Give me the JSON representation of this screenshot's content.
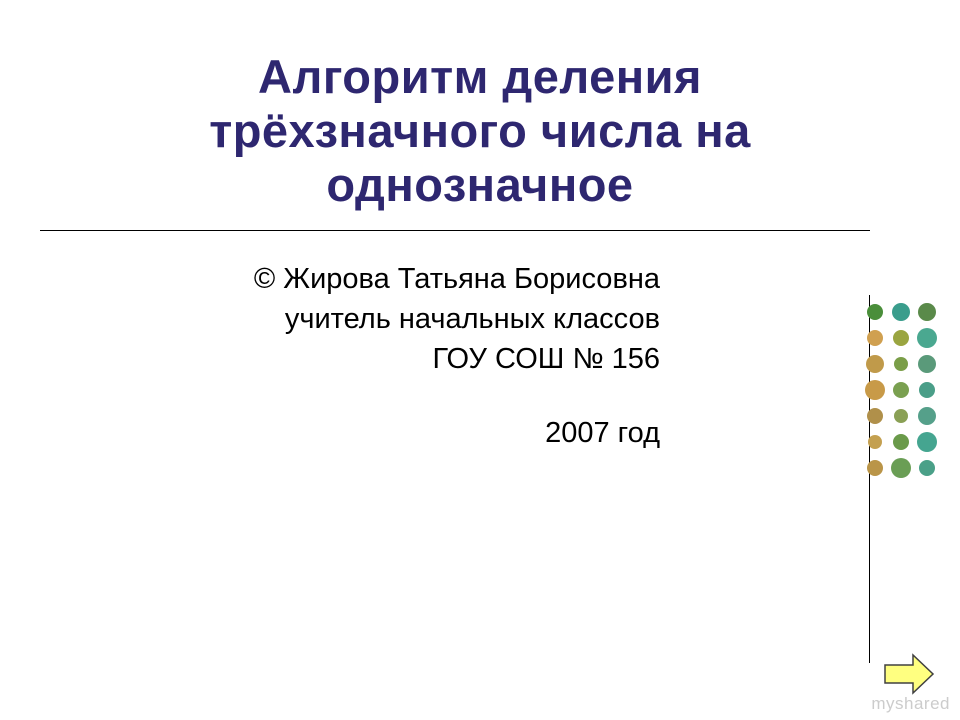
{
  "title": {
    "line1": "Алгоритм деления",
    "line2": "трёхзначного  числа на",
    "line3": "однозначное",
    "color": "#2e2770",
    "fontsize": 47
  },
  "subtitle": {
    "line1": "© Жирова Татьяна Борисовна",
    "line2": "учитель начальных классов",
    "line3": "ГОУ СОШ № 156",
    "year": "2007 год",
    "color": "#000000",
    "fontsize": 29
  },
  "divider": {
    "color": "#000000"
  },
  "decoration": {
    "type": "dot-grid",
    "rows": 7,
    "cols": 3,
    "spacing": 26,
    "dots": [
      {
        "r": 0,
        "c": 0,
        "radius": 8,
        "color": "#4a8e3a"
      },
      {
        "r": 0,
        "c": 1,
        "radius": 9,
        "color": "#3a9d8c"
      },
      {
        "r": 0,
        "c": 2,
        "radius": 9,
        "color": "#5a8a4a"
      },
      {
        "r": 1,
        "c": 0,
        "radius": 8,
        "color": "#d0a050"
      },
      {
        "r": 1,
        "c": 1,
        "radius": 8,
        "color": "#9aa540"
      },
      {
        "r": 1,
        "c": 2,
        "radius": 10,
        "color": "#4aa890"
      },
      {
        "r": 2,
        "c": 0,
        "radius": 9,
        "color": "#c09a4a"
      },
      {
        "r": 2,
        "c": 1,
        "radius": 7,
        "color": "#7a9e48"
      },
      {
        "r": 2,
        "c": 2,
        "radius": 9,
        "color": "#5a9a7a"
      },
      {
        "r": 3,
        "c": 0,
        "radius": 10,
        "color": "#c89a48"
      },
      {
        "r": 3,
        "c": 1,
        "radius": 8,
        "color": "#7aa050"
      },
      {
        "r": 3,
        "c": 2,
        "radius": 8,
        "color": "#4a9e88"
      },
      {
        "r": 4,
        "c": 0,
        "radius": 8,
        "color": "#b0904a"
      },
      {
        "r": 4,
        "c": 1,
        "radius": 7,
        "color": "#8aa055"
      },
      {
        "r": 4,
        "c": 2,
        "radius": 9,
        "color": "#55a08a"
      },
      {
        "r": 5,
        "c": 0,
        "radius": 7,
        "color": "#c4a050"
      },
      {
        "r": 5,
        "c": 1,
        "radius": 8,
        "color": "#6a9a4a"
      },
      {
        "r": 5,
        "c": 2,
        "radius": 10,
        "color": "#45a590"
      },
      {
        "r": 6,
        "c": 0,
        "radius": 8,
        "color": "#ba9548"
      },
      {
        "r": 6,
        "c": 1,
        "radius": 10,
        "color": "#6a9e55"
      },
      {
        "r": 6,
        "c": 2,
        "radius": 8,
        "color": "#4aa088"
      }
    ]
  },
  "nav": {
    "arrow_fill": "#ffff80",
    "arrow_stroke": "#404040"
  },
  "watermark": "myshared",
  "background_color": "#ffffff"
}
